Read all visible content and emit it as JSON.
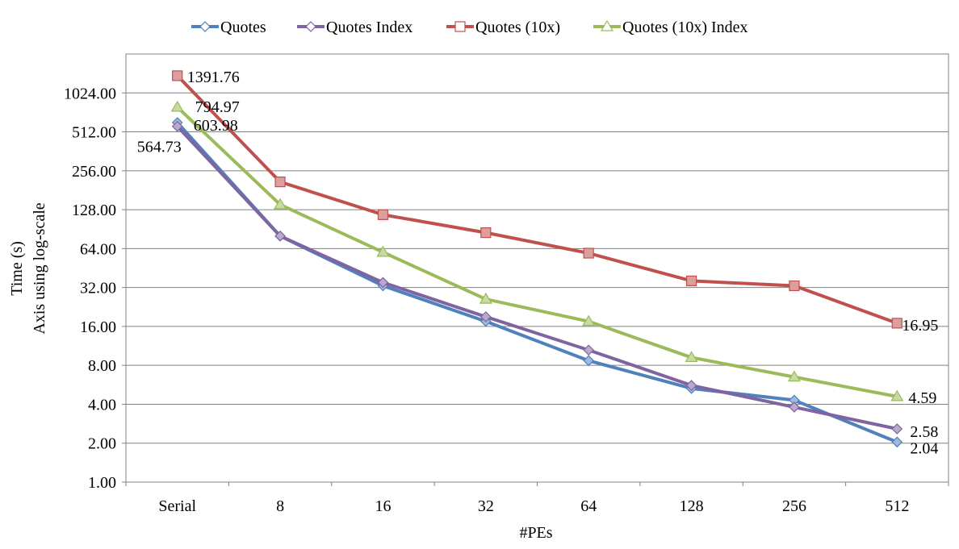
{
  "chart_data": {
    "type": "line",
    "title": "",
    "xlabel": "#PEs",
    "ylabel_lines": [
      "Time (s)",
      "Axis using log-scale"
    ],
    "y_scale": "log2",
    "ylim": [
      1,
      2048
    ],
    "grid": true,
    "legend_position": "top",
    "categories": [
      "Serial",
      "8",
      "16",
      "32",
      "64",
      "128",
      "256",
      "512"
    ],
    "y_ticks": [
      1,
      2,
      4,
      8,
      16,
      32,
      64,
      128,
      256,
      512,
      1024
    ],
    "y_tick_labels": [
      "1.00",
      "2.00",
      "4.00",
      "8.00",
      "16.00",
      "32.00",
      "64.00",
      "128.00",
      "256.00",
      "512.00",
      "1024.00"
    ],
    "series": [
      {
        "name": "Quotes",
        "color": "#4F81BD",
        "marker": "diamond",
        "values": [
          603.98,
          80,
          33,
          17.5,
          8.7,
          5.3,
          4.3,
          2.04
        ]
      },
      {
        "name": "Quotes Index",
        "color": "#8064A2",
        "marker": "diamond",
        "values": [
          564.73,
          80,
          35,
          19,
          10.5,
          5.6,
          3.8,
          2.58
        ]
      },
      {
        "name": "Quotes (10x)",
        "color": "#C0504D",
        "marker": "square",
        "values": [
          1391.76,
          210,
          117,
          85,
          59,
          36,
          33,
          16.95
        ]
      },
      {
        "name": "Quotes (10x) Index",
        "color": "#9BBB59",
        "marker": "triangle",
        "values": [
          794.97,
          140,
          60,
          26,
          17.5,
          9.2,
          6.5,
          4.59
        ]
      }
    ],
    "annotations": [
      {
        "text": "1391.76",
        "series": 2,
        "index": 0
      },
      {
        "text": "794.97",
        "series": 3,
        "index": 0
      },
      {
        "text": "603.98",
        "series": 0,
        "index": 0
      },
      {
        "text": "564.73",
        "series": 1,
        "index": 0
      },
      {
        "text": "16.95",
        "series": 2,
        "index": 7
      },
      {
        "text": "4.59",
        "series": 3,
        "index": 7
      },
      {
        "text": "2.58",
        "series": 1,
        "index": 7
      },
      {
        "text": "2.04",
        "series": 0,
        "index": 7
      }
    ]
  }
}
